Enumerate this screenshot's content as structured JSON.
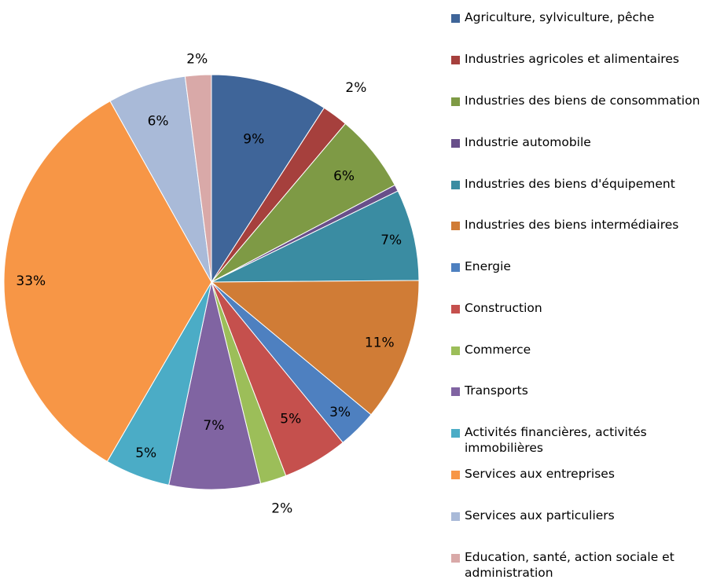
{
  "chart_data": {
    "type": "pie",
    "title": "",
    "legend_position": "right",
    "slices": [
      {
        "name": "Agriculture, sylviculture, pêche",
        "value": 9,
        "label": "9%",
        "color": "#3F6599"
      },
      {
        "name": "Industries agricoles et alimentaires",
        "value": 2,
        "label": "2%",
        "color": "#A6403D"
      },
      {
        "name": "Industries des biens de consommation",
        "value": 6,
        "label": "6%",
        "color": "#7E9A45"
      },
      {
        "name": "Industrie automobile",
        "value": 0.5,
        "label": "",
        "color": "#684F8A"
      },
      {
        "name": "Industries des biens d'équipement",
        "value": 7,
        "label": "7%",
        "color": "#3A8CA2"
      },
      {
        "name": "Industries des biens intermédiaires",
        "value": 11,
        "label": "11%",
        "color": "#D07C36"
      },
      {
        "name": "Energie",
        "value": 3,
        "label": "3%",
        "color": "#4E80C0"
      },
      {
        "name": "Construction",
        "value": 5,
        "label": "5%",
        "color": "#C5504D"
      },
      {
        "name": "Commerce",
        "value": 2,
        "label": "2%",
        "color": "#9CBE59"
      },
      {
        "name": "Transports",
        "value": 7,
        "label": "7%",
        "color": "#8064A2"
      },
      {
        "name": "Activités financières, activités immobilières",
        "value": 5,
        "label": "5%",
        "color": "#4BACC6"
      },
      {
        "name": "Services aux entreprises",
        "value": 33,
        "label": "33%",
        "color": "#F79646"
      },
      {
        "name": "Services aux particuliers",
        "value": 6,
        "label": "6%",
        "color": "#A9BAD8"
      },
      {
        "name": "Education, santé, action sociale et administration",
        "value": 2,
        "label": "2%",
        "color": "#D9A9A8"
      }
    ]
  }
}
